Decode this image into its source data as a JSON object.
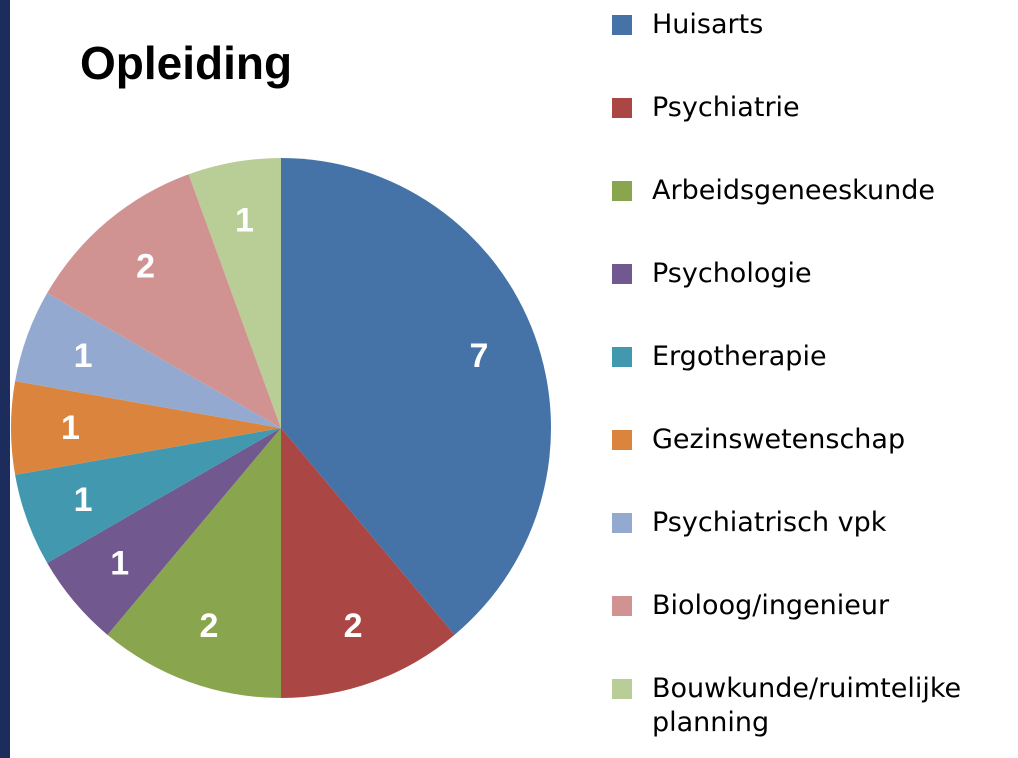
{
  "chart_data": {
    "type": "pie",
    "title": "Opleiding",
    "categories": [
      "Huisarts",
      "Psychiatrie",
      "Arbeidsgeneeskunde",
      "Psychologie",
      "Ergotherapie",
      "Gezinswetenschap",
      "Psychiatrisch vpk",
      "Bioloog/ingenieur",
      "Bouwkunde/ruimtelijke planning"
    ],
    "values": [
      7,
      2,
      2,
      1,
      1,
      1,
      1,
      2,
      1
    ],
    "colors": [
      "#4572a7",
      "#aa4643",
      "#89a54e",
      "#71588f",
      "#4198af",
      "#db843d",
      "#93a9cf",
      "#d19392",
      "#b9cd96"
    ],
    "legend": "right"
  }
}
